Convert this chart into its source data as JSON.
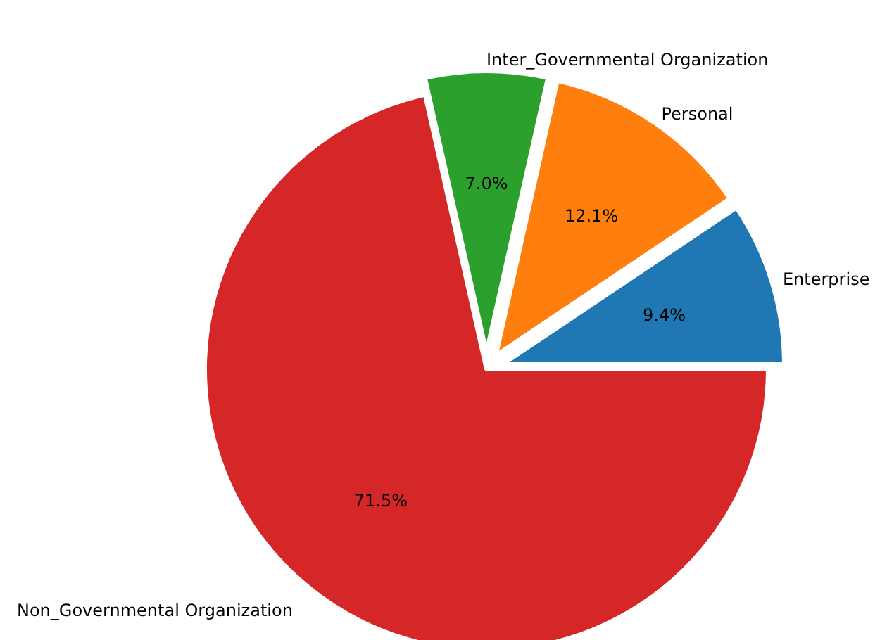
{
  "chart_data": {
    "type": "pie",
    "categories": [
      "Enterprise",
      "Personal",
      "Inter_Governmental Organization",
      "Non_Governmental Organization"
    ],
    "values": [
      9.4,
      12.1,
      7.0,
      71.5
    ],
    "colors": [
      "#1f77b4",
      "#ff7f0e",
      "#2ca02c",
      "#d62728"
    ],
    "value_labels": [
      "9.4%",
      "12.1%",
      "7.0%",
      "71.5%"
    ]
  }
}
